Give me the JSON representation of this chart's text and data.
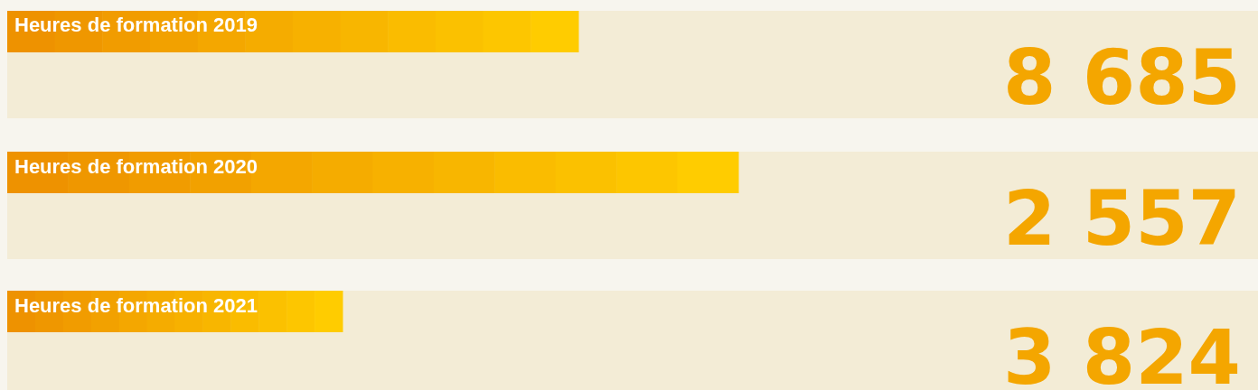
{
  "chart_data": {
    "type": "other",
    "categories": [
      "Heures de formation 2019",
      "Heures de formation 2020",
      "Heures de formation 2021"
    ],
    "values": [
      8685,
      2557,
      3824
    ],
    "data_labels": true
  }
}
